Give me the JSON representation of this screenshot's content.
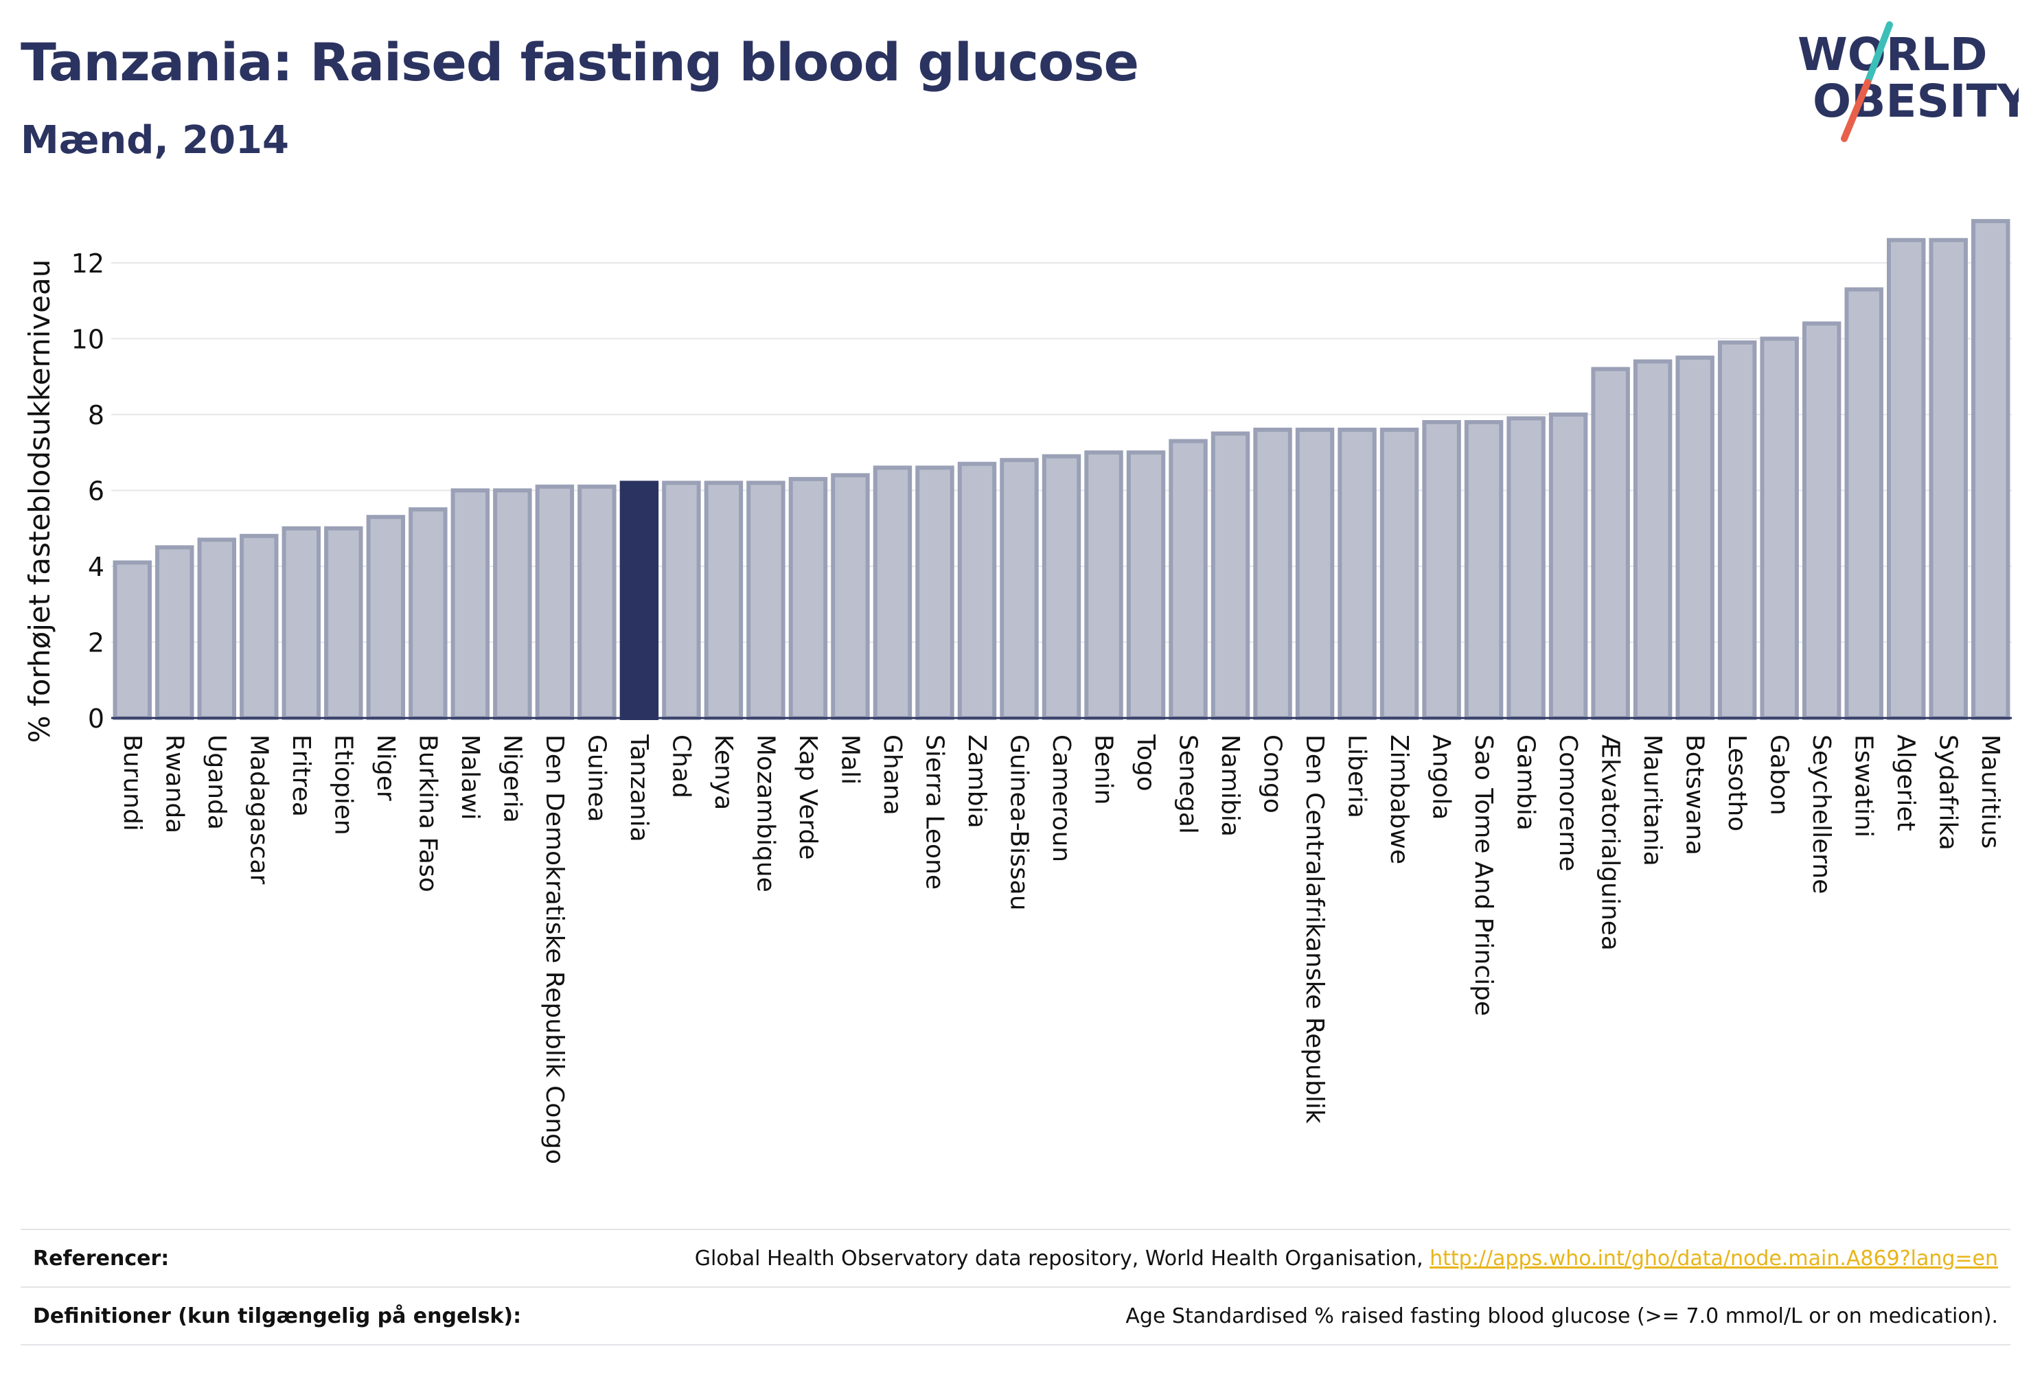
{
  "header": {
    "title": "Tanzania: Raised fasting blood glucose",
    "subtitle": "Mænd, 2014",
    "logo_line1": "WORLD",
    "logo_line2": "OBESITY"
  },
  "colors": {
    "bar": "#bcc0ce",
    "bar_stroke": "#9aa0b6",
    "highlight": "#2b3360",
    "text": "#2b3360",
    "link": "#e8b418",
    "logo_teal": "#3cbfb8",
    "logo_red": "#e8604a"
  },
  "chart_data": {
    "type": "bar",
    "ylabel": "% forhøjet fasteblodsukkerniveau",
    "ylim": [
      0,
      13.5
    ],
    "yticks": [
      0,
      2,
      4,
      6,
      8,
      10,
      12
    ],
    "grid": true,
    "highlight": "Tanzania",
    "categories": [
      "Burundi",
      "Rwanda",
      "Uganda",
      "Madagascar",
      "Eritrea",
      "Etiopien",
      "Niger",
      "Burkina Faso",
      "Malawi",
      "Nigeria",
      "Den Demokratiske Republik Congo",
      "Guinea",
      "Tanzania",
      "Chad",
      "Kenya",
      "Mozambique",
      "Kap Verde",
      "Mali",
      "Ghana",
      "Sierra Leone",
      "Zambia",
      "Guinea-Bissau",
      "Cameroun",
      "Benin",
      "Togo",
      "Senegal",
      "Namibia",
      "Congo",
      "Den Centralafrikanske Republik",
      "Liberia",
      "Zimbabwe",
      "Angola",
      "Sao Tome And Principe",
      "Gambia",
      "Comorerne",
      "Ækvatorialguinea",
      "Mauritania",
      "Botswana",
      "Lesotho",
      "Gabon",
      "Seychellerne",
      "Eswatini",
      "Algeriet",
      "Sydafrika",
      "Mauritius"
    ],
    "values": [
      4.1,
      4.5,
      4.7,
      4.8,
      5.0,
      5.0,
      5.3,
      5.5,
      6.0,
      6.0,
      6.1,
      6.1,
      6.2,
      6.2,
      6.2,
      6.2,
      6.3,
      6.4,
      6.6,
      6.6,
      6.7,
      6.8,
      6.9,
      7.0,
      7.0,
      7.3,
      7.5,
      7.6,
      7.6,
      7.6,
      7.6,
      7.8,
      7.8,
      7.9,
      8.0,
      9.2,
      9.4,
      9.5,
      9.9,
      10.0,
      10.4,
      11.3,
      12.6,
      12.6,
      13.1
    ]
  },
  "footer": {
    "references_label": "Referencer:",
    "references_text": "Global Health Observatory data repository, World Health Organisation, ",
    "references_link": "http://apps.who.int/gho/data/node.main.A869?lang=en",
    "definitions_label": "Definitioner (kun tilgængelig på engelsk):",
    "definitions_text": "Age Standardised % raised fasting blood glucose (>= 7.0 mmol/L or on medication)."
  }
}
